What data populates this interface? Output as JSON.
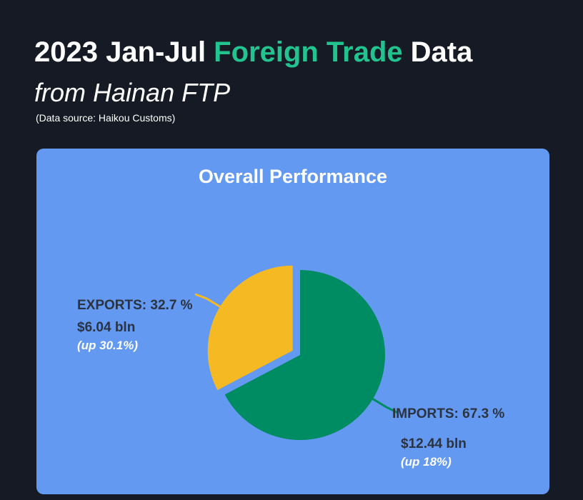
{
  "header": {
    "title": {
      "before": "2023 Jan-Jul",
      "highlight": "Foreign Trade",
      "after": "Data"
    },
    "subtitle": "from Hainan FTP",
    "source": "(Data source: Haikou Customs)"
  },
  "chart_data": {
    "type": "pie",
    "title": "Overall Performance",
    "labels": [
      "IMPORTS: 67.3 %",
      "EXPORTS: 32.7 %"
    ],
    "values": [
      67.3,
      32.7
    ],
    "colors": [
      "#008c62",
      "#f5b924"
    ],
    "amounts": [
      12.44,
      6.04
    ],
    "amount_labels": [
      "$12.44 bln",
      "$6.04 bln"
    ],
    "growth": [
      18,
      30.1
    ],
    "growth_labels": [
      "(up 18%)",
      "(up 30.1%)"
    ],
    "exploded": [
      false,
      true
    ]
  }
}
